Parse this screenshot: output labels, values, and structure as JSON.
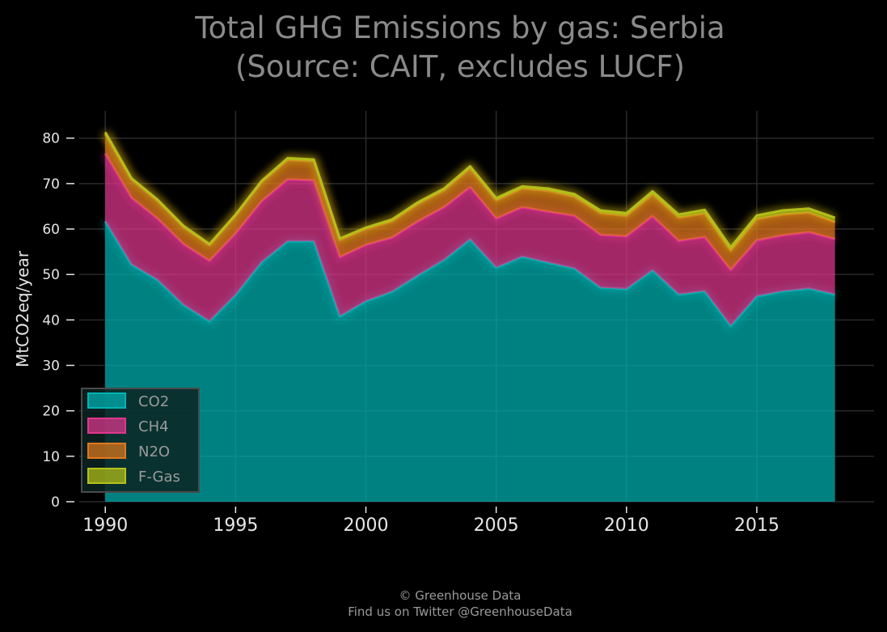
{
  "chart_data": {
    "type": "area",
    "stacked": true,
    "title": [
      "Total GHG Emissions by gas: Serbia",
      "(Source: CAIT, excludes LUCF)"
    ],
    "xlabel": "",
    "ylabel": "MtCO2eq/year",
    "xlim": [
      1989,
      2019.5
    ],
    "ylim": [
      0,
      86
    ],
    "x_ticks": [
      "1990",
      "1995",
      "2000",
      "2005",
      "2010",
      "2015"
    ],
    "y_ticks": [
      "0",
      "10",
      "20",
      "30",
      "40",
      "50",
      "60",
      "70",
      "80"
    ],
    "grid": true,
    "legend_position": "lower-left",
    "x": [
      1990,
      1991,
      1992,
      1993,
      1994,
      1995,
      1996,
      1997,
      1998,
      1999,
      2000,
      2001,
      2002,
      2003,
      2004,
      2005,
      2006,
      2007,
      2008,
      2009,
      2010,
      2011,
      2012,
      2013,
      2014,
      2015,
      2016,
      2017,
      2018
    ],
    "series": [
      {
        "name": "CO2",
        "color": "#00b3b3",
        "values": [
          61.7,
          52.2,
          48.8,
          43.3,
          39.7,
          45.5,
          52.7,
          57.3,
          57.3,
          40.8,
          44.1,
          46.2,
          49.8,
          53.2,
          57.7,
          51.5,
          53.9,
          52.6,
          51.3,
          47.1,
          46.8,
          50.9,
          45.6,
          46.3,
          38.7,
          45.2,
          46.3,
          46.9,
          45.6
        ]
      },
      {
        "name": "CH4",
        "color": "#e0368d",
        "values": [
          14.9,
          14.7,
          13.5,
          13.4,
          13.3,
          13.5,
          13.4,
          13.6,
          13.4,
          13.0,
          12.4,
          11.9,
          11.9,
          11.6,
          11.5,
          10.8,
          10.9,
          11.2,
          11.6,
          11.6,
          11.6,
          11.9,
          11.8,
          11.9,
          12.3,
          12.3,
          12.3,
          12.4,
          12.2
        ]
      },
      {
        "name": "N2O",
        "color": "#e0781c",
        "values": [
          4.3,
          4.0,
          3.9,
          3.7,
          3.4,
          3.9,
          4.2,
          4.3,
          4.2,
          3.8,
          3.5,
          3.6,
          3.8,
          3.7,
          4.1,
          4.0,
          4.1,
          4.6,
          4.2,
          4.8,
          4.5,
          4.8,
          5.1,
          5.2,
          4.2,
          4.7,
          4.6,
          4.3,
          3.7
        ]
      },
      {
        "name": "F-Gas",
        "color": "#b5c218",
        "values": [
          0.4,
          0.3,
          0.3,
          0.3,
          0.3,
          0.3,
          0.3,
          0.4,
          0.4,
          0.3,
          0.3,
          0.4,
          0.4,
          0.4,
          0.5,
          0.5,
          0.5,
          0.5,
          0.6,
          0.6,
          0.6,
          0.7,
          0.7,
          0.8,
          0.8,
          0.8,
          0.9,
          0.9,
          1.0
        ]
      }
    ]
  },
  "credit": {
    "line1": "© Greenhouse Data",
    "line2": "Find us on Twitter @GreenhouseData"
  }
}
